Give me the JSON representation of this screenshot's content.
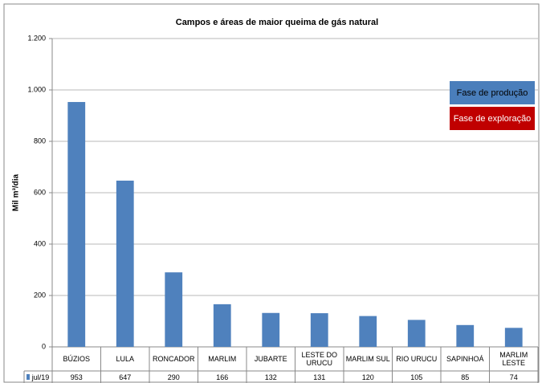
{
  "chart_data": {
    "type": "bar",
    "title": "Campos e áreas de maior queima de gás natural",
    "y_label": "Mil m³/dia",
    "categories": [
      "BÚZIOS",
      "LULA",
      "RONCADOR",
      "MARLIM",
      "JUBARTE",
      "LESTE DO URUCU",
      "MARLIM SUL",
      "RIO URUCU",
      "SAPINHOÁ",
      "MARLIM LESTE"
    ],
    "series": [
      {
        "name": "jul/19",
        "color": "#4f81bd",
        "values": [
          953,
          647,
          290,
          166,
          132,
          131,
          120,
          105,
          85,
          74
        ]
      }
    ],
    "ylim": [
      0,
      1200
    ],
    "yticks": [
      0,
      200,
      400,
      600,
      800,
      {
        "value": 1000,
        "label": "1.000"
      },
      {
        "value": 1200,
        "label": "1.200"
      }
    ],
    "grid": true,
    "legend": [
      {
        "name": "Fase de produção",
        "color": "#4a7ebb"
      },
      {
        "name": "Fase de exploração",
        "color": "#c00000"
      }
    ]
  }
}
